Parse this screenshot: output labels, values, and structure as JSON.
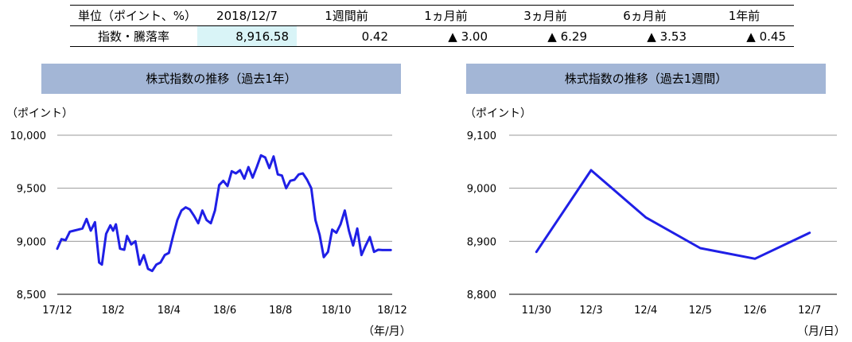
{
  "summary_table": {
    "headers": [
      "単位（ポイント、%）",
      "2018/12/7",
      "1週間前",
      "1ヵ月前",
      "3ヵ月前",
      "6ヵ月前",
      "1年前"
    ],
    "row_label": "指数・騰落率",
    "values": [
      "8,916.58",
      "0.42",
      "▲ 3.00",
      "▲ 6.29",
      "▲ 3.53",
      "▲ 0.45"
    ],
    "highlight_color": "#d9f4f7"
  },
  "line_color": "#1f1fe6",
  "panel_color": "#a3b6d6",
  "chart_data": [
    {
      "type": "line",
      "title": "株式指数の推移（過去1年）",
      "ylabel": "（ポイント）",
      "xlabel": "（年/月）",
      "ylim": [
        8500,
        10000
      ],
      "yticks": [
        8500,
        9000,
        9500,
        10000
      ],
      "ytick_labels": [
        "8,500",
        "9,000",
        "9,500",
        "10,000"
      ],
      "xticks": [
        "17/12",
        "18/2",
        "18/4",
        "18/6",
        "18/8",
        "18/10",
        "18/12"
      ],
      "xrange": [
        0,
        12
      ],
      "grid": true,
      "series": [
        {
          "x": [
            0,
            0.15,
            0.3,
            0.45,
            0.6,
            0.75,
            0.9,
            1.05,
            1.2,
            1.35,
            1.5,
            1.6,
            1.75,
            1.9,
            2.0,
            2.1,
            2.25,
            2.4,
            2.5,
            2.65,
            2.8,
            2.95,
            3.1,
            3.25,
            3.4,
            3.55,
            3.7,
            3.85,
            4.0,
            4.15,
            4.3,
            4.45,
            4.6,
            4.75,
            4.9,
            5.05,
            5.2,
            5.35,
            5.5,
            5.65,
            5.8,
            5.95,
            6.1,
            6.25,
            6.4,
            6.55,
            6.7,
            6.85,
            7.0,
            7.15,
            7.3,
            7.45,
            7.6,
            7.75,
            7.9,
            8.05,
            8.2,
            8.35,
            8.5,
            8.65,
            8.8,
            8.95,
            9.1,
            9.25,
            9.4,
            9.55,
            9.7,
            9.85,
            10.0,
            10.15,
            10.3,
            10.45,
            10.6,
            10.75,
            10.9,
            11.05,
            11.2,
            11.35,
            11.5,
            11.65,
            11.8,
            11.95
          ],
          "values": [
            8930,
            9020,
            9010,
            9090,
            9100,
            9110,
            9120,
            9210,
            9100,
            9180,
            8800,
            8780,
            9070,
            9150,
            9100,
            9160,
            8930,
            8920,
            9050,
            8970,
            9000,
            8780,
            8870,
            8740,
            8720,
            8780,
            8800,
            8870,
            8890,
            9050,
            9200,
            9290,
            9320,
            9300,
            9240,
            9170,
            9290,
            9200,
            9170,
            9290,
            9530,
            9570,
            9520,
            9660,
            9640,
            9670,
            9590,
            9700,
            9600,
            9700,
            9810,
            9790,
            9690,
            9800,
            9630,
            9620,
            9500,
            9570,
            9580,
            9630,
            9640,
            9580,
            9500,
            9200,
            9060,
            8850,
            8900,
            9110,
            9080,
            9160,
            9290,
            9100,
            8960,
            9120,
            8870,
            8960,
            9040,
            8900,
            8920,
            8917,
            8917,
            8917
          ]
        }
      ]
    },
    {
      "type": "line",
      "title": "株式指数の推移（過去1週間）",
      "ylabel": "（ポイント）",
      "xlabel": "（月/日）",
      "ylim": [
        8800,
        9100
      ],
      "yticks": [
        8800,
        8900,
        9000,
        9100
      ],
      "ytick_labels": [
        "8,800",
        "8,900",
        "9,000",
        "9,100"
      ],
      "categories": [
        "11/30",
        "12/3",
        "12/4",
        "12/5",
        "12/6",
        "12/7"
      ],
      "grid": true,
      "series": [
        {
          "values": [
            8880,
            9034,
            8945,
            8887,
            8867,
            8916
          ]
        }
      ]
    }
  ]
}
